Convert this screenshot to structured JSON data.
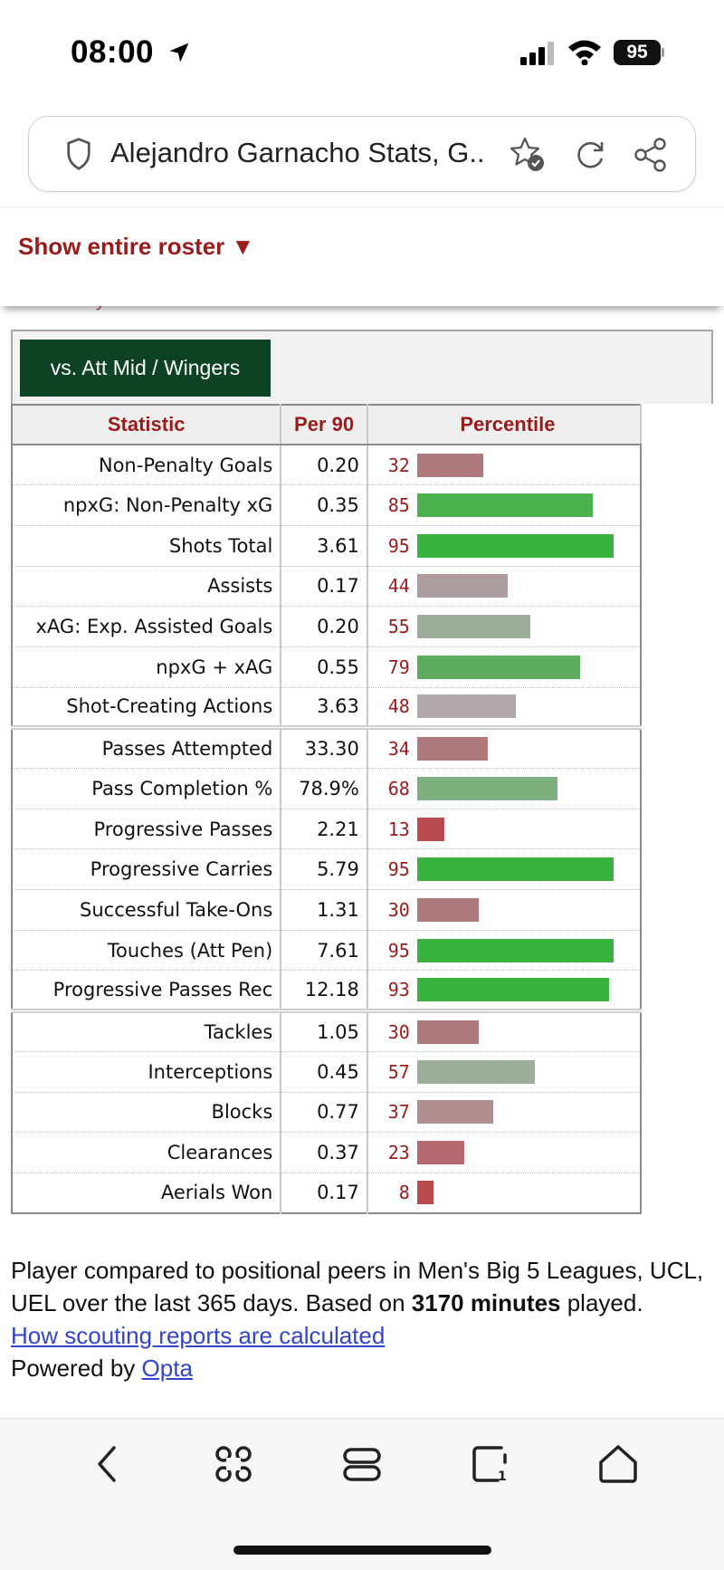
{
  "status_bar": {
    "time": "08:00",
    "battery": "95"
  },
  "url_bar": {
    "title": "Alejandro Garnacho Stats, G.."
  },
  "roster": {
    "link": "Show entire roster ▼",
    "peek": "Glossary"
  },
  "scouting": {
    "position_tab": "vs. Att Mid / Wingers",
    "headers": {
      "statistic": "Statistic",
      "per90": "Per 90",
      "percentile": "Percentile"
    },
    "rows": [
      {
        "stat": "Non-Penalty Goals",
        "per90": "0.20",
        "pct": 32,
        "color": "#b07a7d"
      },
      {
        "stat": "npxG: Non-Penalty xG",
        "per90": "0.35",
        "pct": 85,
        "color": "#4db04f"
      },
      {
        "stat": "Shots Total",
        "per90": "3.61",
        "pct": 95,
        "color": "#3ab240"
      },
      {
        "stat": "Assists",
        "per90": "0.17",
        "pct": 44,
        "color": "#ad9c9e"
      },
      {
        "stat": "xAG: Exp. Assisted Goals",
        "per90": "0.20",
        "pct": 55,
        "color": "#9ead9c"
      },
      {
        "stat": "npxG + xAG",
        "per90": "0.55",
        "pct": 79,
        "color": "#5eab5e"
      },
      {
        "stat": "Shot-Creating Actions",
        "per90": "3.63",
        "pct": 48,
        "color": "#b0a8aa"
      },
      {
        "stat": "Passes Attempted",
        "per90": "33.30",
        "pct": 34,
        "color": "#b07a7d"
      },
      {
        "stat": "Pass Completion %",
        "per90": "78.9%",
        "pct": 68,
        "color": "#7fb07f"
      },
      {
        "stat": "Progressive Passes",
        "per90": "2.21",
        "pct": 13,
        "color": "#b84a4e"
      },
      {
        "stat": "Progressive Carries",
        "per90": "5.79",
        "pct": 95,
        "color": "#3ab240"
      },
      {
        "stat": "Successful Take-Ons",
        "per90": "1.31",
        "pct": 30,
        "color": "#b07a7d"
      },
      {
        "stat": "Touches (Att Pen)",
        "per90": "7.61",
        "pct": 95,
        "color": "#3ab240"
      },
      {
        "stat": "Progressive Passes Rec",
        "per90": "12.18",
        "pct": 93,
        "color": "#3ab240"
      },
      {
        "stat": "Tackles",
        "per90": "1.05",
        "pct": 30,
        "color": "#b07a7d"
      },
      {
        "stat": "Interceptions",
        "per90": "0.45",
        "pct": 57,
        "color": "#9ead9c"
      },
      {
        "stat": "Blocks",
        "per90": "0.77",
        "pct": 37,
        "color": "#b08f93"
      },
      {
        "stat": "Clearances",
        "per90": "0.37",
        "pct": 23,
        "color": "#b46a6e"
      },
      {
        "stat": "Aerials Won",
        "per90": "0.17",
        "pct": 8,
        "color": "#b84a4e"
      }
    ],
    "group_end_indices": [
      6,
      13
    ]
  },
  "footer": {
    "text_before": "Player compared to positional peers in Men's Big 5 Leagues, UCL, UEL over the last 365 days. Based on ",
    "minutes": "3170 minutes",
    "text_after": " played.",
    "calc_link": "How scouting reports are calculated",
    "powered_by": "Powered by ",
    "opta_link": "Opta"
  }
}
